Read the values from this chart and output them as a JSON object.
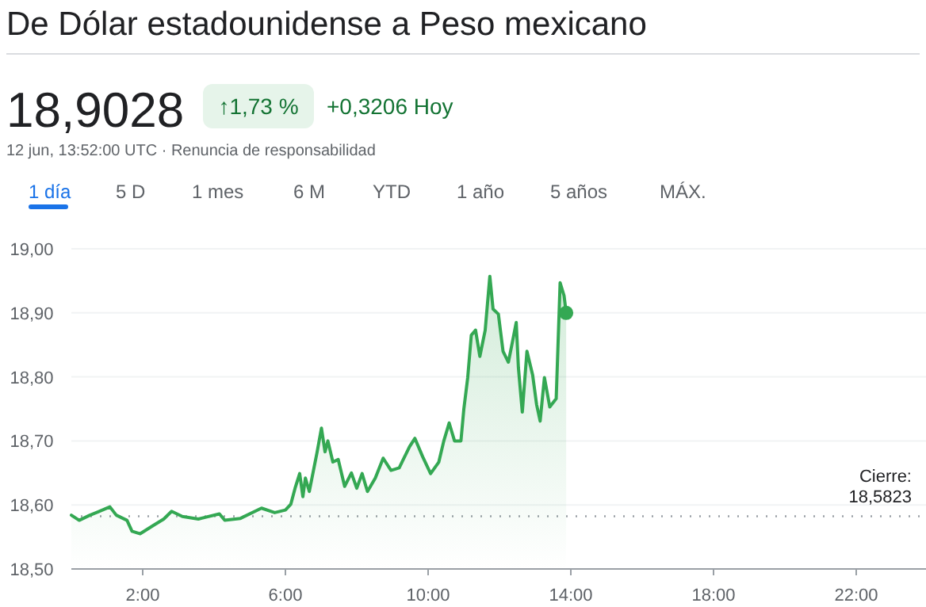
{
  "chart_data": {
    "type": "area",
    "title": "De Dólar estadounidense a Peso mexicano",
    "annotations": [
      "18,9028",
      "↑1,73 %",
      "+0,3206 Hoy",
      "12 jun, 13:52:00 UTC · Renuncia de responsabilidad",
      "1 día",
      "5 D",
      "1 mes",
      "6 M",
      "YTD",
      "1 año",
      "5 años",
      "MÁX."
    ],
    "series": [
      {
        "color": "#34a853",
        "x": [
          0,
          0.22,
          0.52,
          0.74,
          1.08,
          1.26,
          1.56,
          1.7,
          1.93,
          2.3,
          2.59,
          2.81,
          3.11,
          3.56,
          4.15,
          4.3,
          4.74,
          5.33,
          5.7,
          6,
          6.15,
          6.27,
          6.4,
          6.49,
          6.56,
          6.67,
          6.89,
          7.01,
          7.11,
          7.19,
          7.33,
          7.48,
          7.66,
          7.85,
          8,
          8.15,
          8.3,
          8.52,
          8.74,
          8.96,
          9.19,
          9.48,
          9.63,
          9.85,
          10.07,
          10.3,
          10.44,
          10.59,
          10.74,
          10.92,
          11,
          11.11,
          11.21,
          11.33,
          11.45,
          11.6,
          11.73,
          11.82,
          11.97,
          12.1,
          12.25,
          12.4,
          12.47,
          12.53,
          12.64,
          12.77,
          12.93,
          13.04,
          13.14,
          13.26,
          13.41,
          13.59,
          13.7,
          13.81,
          13.87
        ],
        "values": [
          18.584,
          18.576,
          18.584,
          18.589,
          18.597,
          18.584,
          18.576,
          18.559,
          18.555,
          18.568,
          18.578,
          18.59,
          18.582,
          18.578,
          18.586,
          18.576,
          18.579,
          18.595,
          18.588,
          18.592,
          18.601,
          18.626,
          18.649,
          18.613,
          18.642,
          18.621,
          18.683,
          18.72,
          18.683,
          18.7,
          18.667,
          18.671,
          18.629,
          18.65,
          18.626,
          18.649,
          18.621,
          18.642,
          18.673,
          18.654,
          18.658,
          18.691,
          18.704,
          18.675,
          18.649,
          18.667,
          18.7,
          18.728,
          18.7,
          18.7,
          18.749,
          18.799,
          18.865,
          18.873,
          18.832,
          18.873,
          18.957,
          18.906,
          18.898,
          18.84,
          18.823,
          18.865,
          18.885,
          18.815,
          18.745,
          18.84,
          18.803,
          18.757,
          18.731,
          18.799,
          18.753,
          18.766,
          18.947,
          18.927,
          18.9
        ]
      },
      {
        "type": "scatter",
        "color": "#34a853",
        "x": [
          13.87
        ],
        "values": [
          18.9
        ]
      }
    ],
    "xlim": [
      0,
      24
    ],
    "xticks": [
      {
        "value": 2,
        "label": "2:00"
      },
      {
        "value": 6,
        "label": "6:00"
      },
      {
        "value": 10,
        "label": "10:00"
      },
      {
        "value": 14,
        "label": "14:00"
      },
      {
        "value": 18,
        "label": "18:00"
      },
      {
        "value": 22,
        "label": "22:00"
      }
    ],
    "ylim": [
      18.5,
      19
    ],
    "yticks": [
      {
        "value": 18.5,
        "label": "18,50"
      },
      {
        "value": 18.6,
        "label": "18,60"
      },
      {
        "value": 18.7,
        "label": "18,70"
      },
      {
        "value": 18.8,
        "label": "18,80"
      },
      {
        "value": 18.9,
        "label": "18,90"
      },
      {
        "value": 19,
        "label": "19,00"
      }
    ],
    "grid": "y",
    "ref_lines": [
      {
        "axis": "y",
        "value": 18.5823,
        "label": "Cierre:\n18,5823",
        "color": "#9aa0a6",
        "line_style": "dotted"
      }
    ]
  }
}
